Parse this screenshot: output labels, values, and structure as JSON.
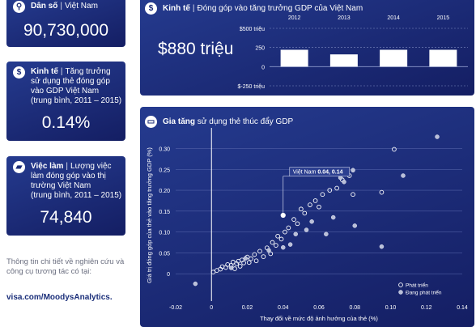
{
  "population": {
    "title": "Dân số",
    "region": "Việt Nam",
    "value": "90,730,000"
  },
  "economy_card": {
    "title": "Kinh tế",
    "desc": "Tăng trưởng sử dụng thẻ đóng góp vào GDP Việt Nam",
    "period": "(trung bình, 2011 – 2015)",
    "value": "0.14%"
  },
  "jobs_card": {
    "title": "Việc làm",
    "desc": "Lượng việc làm đóng góp vào thị trường Việt Nam",
    "period": "(trung bình, 2011 – 2015)",
    "value": "74,840"
  },
  "sidebar_note": {
    "text": "Thông tin chi tiết về nghiên cứu và công cụ tương tác có tại:",
    "link": "visa.com/MoodysAnalytics."
  },
  "gdp_panel": {
    "title": "Kinh tế",
    "subtitle": "Đóng góp vào tăng trưởng GDP của Việt Nam",
    "headline": "$880 triệu",
    "icon": "dollar-icon"
  },
  "scatter_panel": {
    "title_bold": "Gia tăng",
    "title_rest": "sử dụng thẻ thúc đẩy GDP",
    "annotation_name": "Việt Nam",
    "annotation_values": "0.04, 0.14",
    "icon": "card-icon"
  },
  "chart_data": [
    {
      "type": "bar",
      "categories": [
        "2012",
        "2013",
        "2014",
        "2015"
      ],
      "values": [
        220,
        160,
        220,
        220
      ],
      "y_ticks": [
        "$500 triệu",
        "250",
        "0",
        "$-250 triệu"
      ],
      "ylim": [
        -250,
        500
      ],
      "grid": true,
      "colors": {
        "bar": "#ffffff",
        "grid": "#7f8cc2"
      }
    },
    {
      "type": "scatter",
      "xlabel": "Thay đổi về mức độ ảnh hưởng của thẻ (%)",
      "ylabel": "Giá trị đóng góp của thẻ vào tăng trưởng GDP (%)",
      "xlim": [
        -0.02,
        0.14
      ],
      "ylim": [
        -0.05,
        0.33
      ],
      "x_ticks": [
        "-0.02",
        "0",
        "0.02",
        "0.04",
        "0.06",
        "0.08",
        "0.10",
        "0.12",
        "0.14"
      ],
      "y_ticks": [
        "0",
        "0.05",
        "0.10",
        "0.15",
        "0.20",
        "0.25",
        "0.30"
      ],
      "grid": true,
      "legend_position": "bottom-right",
      "series": [
        {
          "name": "Phát triển",
          "marker": "hollow",
          "points": [
            [
              0.001,
              0.004
            ],
            [
              0.003,
              0.008
            ],
            [
              0.005,
              0.011
            ],
            [
              0.006,
              0.017
            ],
            [
              0.008,
              0.015
            ],
            [
              0.009,
              0.022
            ],
            [
              0.011,
              0.02
            ],
            [
              0.012,
              0.028
            ],
            [
              0.013,
              0.012
            ],
            [
              0.014,
              0.024
            ],
            [
              0.015,
              0.03
            ],
            [
              0.016,
              0.018
            ],
            [
              0.017,
              0.033
            ],
            [
              0.018,
              0.026
            ],
            [
              0.02,
              0.04
            ],
            [
              0.021,
              0.027
            ],
            [
              0.022,
              0.036
            ],
            [
              0.024,
              0.046
            ],
            [
              0.025,
              0.031
            ],
            [
              0.027,
              0.054
            ],
            [
              0.029,
              0.041
            ],
            [
              0.031,
              0.062
            ],
            [
              0.033,
              0.048
            ],
            [
              0.034,
              0.075
            ],
            [
              0.036,
              0.068
            ],
            [
              0.037,
              0.09
            ],
            [
              0.039,
              0.083
            ],
            [
              0.041,
              0.1
            ],
            [
              0.043,
              0.11
            ],
            [
              0.046,
              0.13
            ],
            [
              0.048,
              0.12
            ],
            [
              0.05,
              0.155
            ],
            [
              0.052,
              0.145
            ],
            [
              0.055,
              0.165
            ],
            [
              0.058,
              0.175
            ],
            [
              0.06,
              0.16
            ],
            [
              0.062,
              0.19
            ],
            [
              0.066,
              0.2
            ],
            [
              0.07,
              0.205
            ],
            [
              0.073,
              0.225
            ],
            [
              0.077,
              0.235
            ],
            [
              0.079,
              0.19
            ],
            [
              0.095,
              0.195
            ],
            [
              0.102,
              0.298
            ]
          ]
        },
        {
          "name": "Đang phát triển",
          "marker": "filled",
          "points": [
            [
              -0.009,
              -0.024
            ],
            [
              0.011,
              0.014
            ],
            [
              0.019,
              0.037
            ],
            [
              0.032,
              0.056
            ],
            [
              0.04,
              0.063
            ],
            [
              0.044,
              0.07
            ],
            [
              0.047,
              0.095
            ],
            [
              0.053,
              0.105
            ],
            [
              0.056,
              0.125
            ],
            [
              0.064,
              0.095
            ],
            [
              0.068,
              0.135
            ],
            [
              0.072,
              0.23
            ],
            [
              0.074,
              0.22
            ],
            [
              0.079,
              0.248
            ],
            [
              0.08,
              0.115
            ],
            [
              0.095,
              0.065
            ],
            [
              0.107,
              0.235
            ],
            [
              0.126,
              0.328
            ]
          ]
        }
      ],
      "highlight": {
        "label": "Việt Nam",
        "x": 0.04,
        "y": 0.14
      }
    }
  ]
}
